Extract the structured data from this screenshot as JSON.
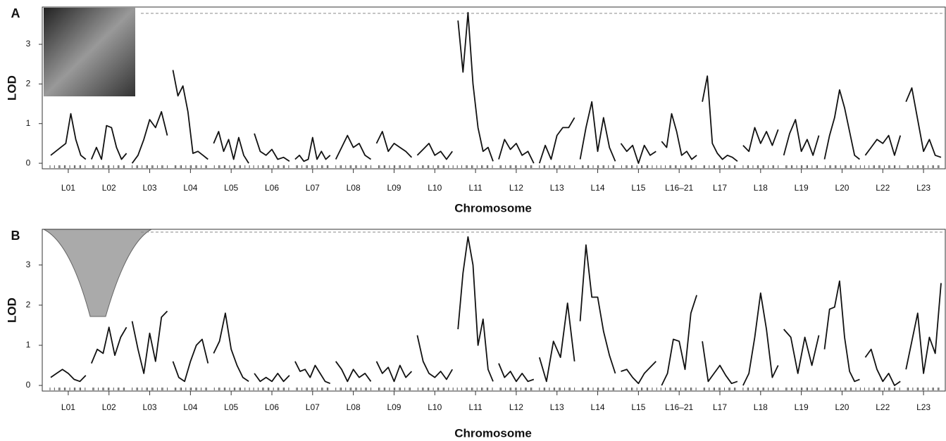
{
  "chart_data": [
    {
      "type": "line",
      "panel": "A",
      "ylabel": "LOD",
      "xlabel": "Chromosome",
      "color": "#111111",
      "ylim": [
        -0.14,
        3.94
      ],
      "yticks": [
        0,
        1,
        2,
        3
      ],
      "threshold": 3.78,
      "categories": [
        "L01",
        "L02",
        "L03",
        "L04",
        "L05",
        "L06",
        "L07",
        "L08",
        "L09",
        "L10",
        "L11",
        "L12",
        "L13",
        "L14",
        "L15",
        "L16–21",
        "L17",
        "L18",
        "L19",
        "L20",
        "L22",
        "L23"
      ],
      "curves": [
        [
          0.2,
          0.3,
          0.4,
          0.5,
          1.25,
          0.6,
          0.2,
          0.1
        ],
        [
          0.1,
          0.4,
          0.1,
          0.95,
          0.9,
          0.4,
          0.1,
          0.25
        ],
        [
          0,
          0.2,
          0.6,
          1.1,
          0.9,
          1.3,
          0.7
        ],
        [
          2.35,
          1.7,
          1.95,
          1.3,
          0.25,
          0.3,
          0.2,
          0.1
        ],
        [
          0.5,
          0.8,
          0.3,
          0.6,
          0.1,
          0.65,
          0.2,
          0
        ],
        [
          0.75,
          0.3,
          0.2,
          0.35,
          0.1,
          0.15,
          0.05
        ],
        [
          0.1,
          0.2,
          0.05,
          0.1,
          0.65,
          0.1,
          0.3,
          0.1,
          0.2
        ],
        [
          0.1,
          0.4,
          0.7,
          0.4,
          0.5,
          0.2,
          0.1
        ],
        [
          0.5,
          0.8,
          0.3,
          0.5,
          0.4,
          0.3,
          0.15
        ],
        [
          0.2,
          0.35,
          0.5,
          0.2,
          0.3,
          0.1,
          0.3
        ],
        [
          3.6,
          2.3,
          3.8,
          2.0,
          0.9,
          0.3,
          0.4,
          0.05
        ],
        [
          0.1,
          0.6,
          0.35,
          0.5,
          0.2,
          0.3,
          0
        ],
        [
          0,
          0.45,
          0.1,
          0.7,
          0.9,
          0.9,
          1.15
        ],
        [
          0.1,
          0.9,
          1.55,
          0.3,
          1.15,
          0.4,
          0.05
        ],
        [
          0.5,
          0.3,
          0.45,
          0,
          0.45,
          0.2,
          0.3
        ],
        [
          0.55,
          0.4,
          1.25,
          0.8,
          0.2,
          0.3,
          0.1,
          0.2
        ],
        [
          1.55,
          2.2,
          0.5,
          0.25,
          0.1,
          0.2,
          0.15,
          0.05
        ],
        [
          0.45,
          0.3,
          0.9,
          0.5,
          0.8,
          0.45,
          0.85
        ],
        [
          0.2,
          0.75,
          1.1,
          0.3,
          0.6,
          0.2,
          0.7
        ],
        [
          0.1,
          0.7,
          1.15,
          1.85,
          1.4,
          0.8,
          0.2,
          0.1
        ],
        [
          0.2,
          0.4,
          0.6,
          0.5,
          0.7,
          0.2,
          0.7
        ],
        [
          1.55,
          1.9,
          1.1,
          0.3,
          0.6,
          0.2,
          0.15
        ]
      ]
    },
    {
      "type": "line",
      "panel": "B",
      "ylabel": "LOD",
      "xlabel": "Chromosome",
      "color": "#111111",
      "ylim": [
        -0.14,
        3.89
      ],
      "yticks": [
        0,
        1,
        2,
        3
      ],
      "threshold": 3.82,
      "categories": [
        "L01",
        "L02",
        "L03",
        "L04",
        "L05",
        "L06",
        "L07",
        "L08",
        "L09",
        "L10",
        "L11",
        "L12",
        "L13",
        "L14",
        "L15",
        "L16–21",
        "L17",
        "L18",
        "L19",
        "L20",
        "L22",
        "L23"
      ],
      "curves": [
        [
          0.2,
          0.3,
          0.4,
          0.3,
          0.15,
          0.1,
          0.25
        ],
        [
          0.55,
          0.9,
          0.8,
          1.45,
          0.75,
          1.2,
          1.45
        ],
        [
          1.6,
          0.9,
          0.3,
          1.3,
          0.6,
          1.7,
          1.85
        ],
        [
          0.6,
          0.2,
          0.1,
          0.6,
          1.0,
          1.15,
          0.55
        ],
        [
          0.8,
          1.1,
          1.8,
          0.9,
          0.5,
          0.2,
          0.1
        ],
        [
          0.3,
          0.1,
          0.2,
          0.1,
          0.3,
          0.1,
          0.25
        ],
        [
          0.6,
          0.35,
          0.4,
          0.2,
          0.5,
          0.3,
          0.1,
          0.05
        ],
        [
          0.6,
          0.4,
          0.1,
          0.4,
          0.2,
          0.3,
          0.1
        ],
        [
          0.6,
          0.3,
          0.45,
          0.1,
          0.5,
          0.2,
          0.35
        ],
        [
          1.25,
          0.6,
          0.3,
          0.2,
          0.35,
          0.15,
          0.4
        ],
        [
          1.4,
          2.8,
          3.7,
          3.0,
          1.0,
          1.65,
          0.4,
          0.1
        ],
        [
          0.55,
          0.2,
          0.35,
          0.1,
          0.3,
          0.1,
          0.15
        ],
        [
          0.7,
          0.1,
          1.1,
          0.7,
          2.05,
          0.6
        ],
        [
          1.6,
          3.5,
          2.2,
          2.2,
          1.35,
          0.75,
          0.3
        ],
        [
          0.35,
          0.4,
          0.2,
          0.05,
          0.3,
          0.45,
          0.6
        ],
        [
          0,
          0.3,
          1.15,
          1.1,
          0.4,
          1.8,
          2.25
        ],
        [
          1.1,
          0.1,
          0.3,
          0.5,
          0.25,
          0.05,
          0.1
        ],
        [
          0,
          0.3,
          1.2,
          2.3,
          1.4,
          0.2,
          0.5
        ],
        [
          1.4,
          1.2,
          0.3,
          1.2,
          0.5,
          1.25
        ],
        [
          0.9,
          1.9,
          1.95,
          2.6,
          1.2,
          0.35,
          0.1,
          0.15
        ],
        [
          0.7,
          0.9,
          0.4,
          0.1,
          0.3,
          0,
          0.1
        ],
        [
          0.4,
          1.1,
          1.8,
          0.3,
          1.2,
          0.8,
          2.55
        ]
      ]
    }
  ]
}
